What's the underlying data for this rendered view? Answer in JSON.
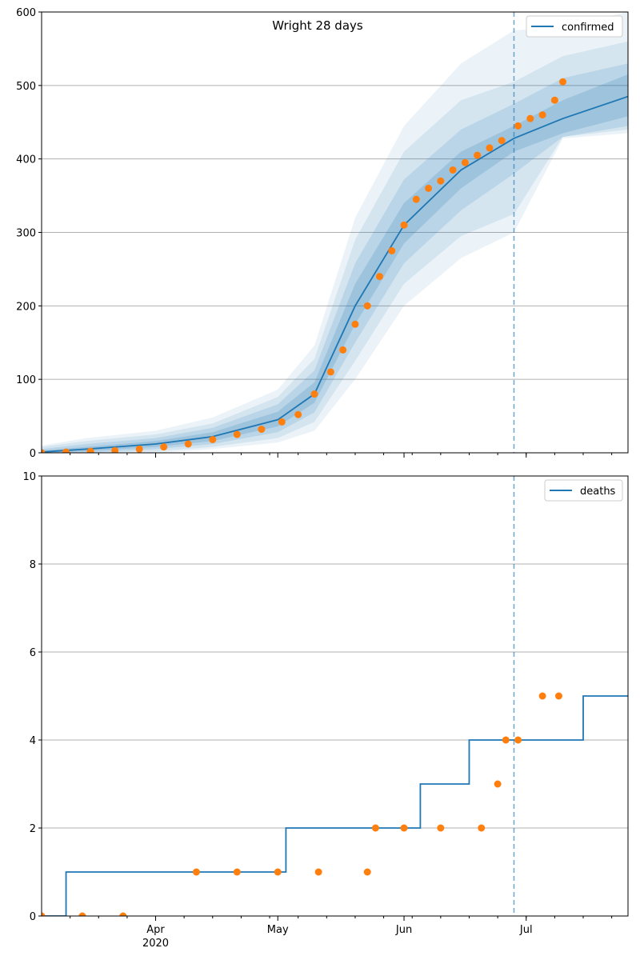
{
  "chart_data": [
    {
      "type": "line",
      "title": "Wright 28 days",
      "xlabel": "",
      "ylabel": "",
      "xlim": [
        "2020-03-04",
        "2020-07-26"
      ],
      "ylim": [
        0,
        600
      ],
      "yticks": [
        0,
        100,
        200,
        300,
        400,
        500,
        600
      ],
      "xticks": [
        {
          "date": "2020-04-01",
          "label": "Apr",
          "sublabel": "2020"
        },
        {
          "date": "2020-05-01",
          "label": "May",
          "sublabel": ""
        },
        {
          "date": "2020-06-01",
          "label": "Jun",
          "sublabel": ""
        },
        {
          "date": "2020-07-01",
          "label": "Jul",
          "sublabel": ""
        }
      ],
      "grid": "horizontal",
      "legend": "top-right",
      "vline_date": "2020-06-28",
      "colors": {
        "line": "#1f77b4",
        "points": "#ff7f0e",
        "band": "#1f77b4"
      },
      "series": [
        {
          "name": "confirmed",
          "kind": "line",
          "x": [
            "2020-03-04",
            "2020-03-15",
            "2020-04-01",
            "2020-04-15",
            "2020-05-01",
            "2020-05-10",
            "2020-05-20",
            "2020-06-01",
            "2020-06-15",
            "2020-06-28",
            "2020-07-10",
            "2020-07-26"
          ],
          "y": [
            1,
            5,
            12,
            22,
            45,
            80,
            200,
            310,
            385,
            428,
            455,
            485
          ]
        },
        {
          "name": "",
          "kind": "band",
          "level": 1,
          "x": [
            "2020-03-04",
            "2020-03-15",
            "2020-04-01",
            "2020-04-15",
            "2020-05-01",
            "2020-05-10",
            "2020-05-20",
            "2020-06-01",
            "2020-06-15",
            "2020-06-28",
            "2020-07-10",
            "2020-07-26"
          ],
          "lo": [
            0,
            2,
            8,
            16,
            36,
            68,
            175,
            285,
            360,
            410,
            435,
            458
          ],
          "hi": [
            3,
            8,
            16,
            28,
            56,
            96,
            230,
            340,
            410,
            445,
            480,
            515
          ]
        },
        {
          "name": "",
          "kind": "band",
          "level": 2,
          "x": [
            "2020-03-04",
            "2020-03-15",
            "2020-04-01",
            "2020-04-15",
            "2020-05-01",
            "2020-05-10",
            "2020-05-20",
            "2020-06-01",
            "2020-06-15",
            "2020-06-28",
            "2020-07-10",
            "2020-07-26"
          ],
          "lo": [
            0,
            0,
            5,
            12,
            28,
            55,
            150,
            258,
            330,
            380,
            430,
            445
          ],
          "hi": [
            5,
            12,
            20,
            34,
            66,
            112,
            258,
            372,
            440,
            475,
            510,
            530
          ]
        },
        {
          "name": "",
          "kind": "band",
          "level": 3,
          "x": [
            "2020-03-04",
            "2020-03-15",
            "2020-04-01",
            "2020-04-15",
            "2020-05-01",
            "2020-05-10",
            "2020-05-20",
            "2020-06-01",
            "2020-06-15",
            "2020-06-28",
            "2020-07-10",
            "2020-07-26"
          ],
          "lo": [
            0,
            0,
            2,
            8,
            20,
            42,
            125,
            230,
            295,
            325,
            430,
            440
          ],
          "hi": [
            8,
            16,
            25,
            40,
            76,
            128,
            290,
            410,
            480,
            505,
            540,
            560
          ]
        },
        {
          "name": "",
          "kind": "band",
          "level": 4,
          "x": [
            "2020-03-04",
            "2020-03-15",
            "2020-04-01",
            "2020-04-15",
            "2020-05-01",
            "2020-05-10",
            "2020-05-20",
            "2020-06-01",
            "2020-06-15",
            "2020-06-28",
            "2020-07-10",
            "2020-07-26"
          ],
          "lo": [
            0,
            0,
            0,
            5,
            14,
            30,
            100,
            200,
            265,
            300,
            428,
            435
          ],
          "hi": [
            10,
            20,
            30,
            48,
            86,
            146,
            320,
            445,
            530,
            575,
            580,
            600
          ]
        },
        {
          "name": "",
          "kind": "points",
          "x": [
            "2020-03-04",
            "2020-03-10",
            "2020-03-16",
            "2020-03-22",
            "2020-03-28",
            "2020-04-03",
            "2020-04-09",
            "2020-04-15",
            "2020-04-21",
            "2020-04-27",
            "2020-05-02",
            "2020-05-06",
            "2020-05-10",
            "2020-05-14",
            "2020-05-17",
            "2020-05-20",
            "2020-05-23",
            "2020-05-26",
            "2020-05-29",
            "2020-06-01",
            "2020-06-04",
            "2020-06-07",
            "2020-06-10",
            "2020-06-13",
            "2020-06-16",
            "2020-06-19",
            "2020-06-22",
            "2020-06-25",
            "2020-06-29",
            "2020-07-02",
            "2020-07-05",
            "2020-07-08",
            "2020-07-10"
          ],
          "y": [
            0,
            1,
            2,
            3,
            5,
            8,
            12,
            18,
            25,
            32,
            42,
            52,
            80,
            110,
            140,
            175,
            200,
            240,
            275,
            310,
            345,
            360,
            370,
            385,
            395,
            405,
            415,
            425,
            445,
            455,
            460,
            480,
            505
          ]
        }
      ]
    },
    {
      "type": "line",
      "title": "",
      "xlabel": "",
      "ylabel": "",
      "xlim": [
        "2020-03-04",
        "2020-07-26"
      ],
      "ylim": [
        0,
        10
      ],
      "yticks": [
        0,
        2,
        4,
        6,
        8,
        10
      ],
      "xticks": [
        {
          "date": "2020-04-01",
          "label": "Apr",
          "sublabel": "2020"
        },
        {
          "date": "2020-05-01",
          "label": "May",
          "sublabel": ""
        },
        {
          "date": "2020-06-01",
          "label": "Jun",
          "sublabel": ""
        },
        {
          "date": "2020-07-01",
          "label": "Jul",
          "sublabel": ""
        }
      ],
      "grid": "horizontal",
      "legend": "top-right",
      "vline_date": "2020-06-28",
      "colors": {
        "line": "#1f77b4",
        "points": "#ff7f0e",
        "band": "#1f77b4"
      },
      "series": [
        {
          "name": "deaths",
          "kind": "line",
          "step": true,
          "x": [
            "2020-03-04",
            "2020-03-10",
            "2020-05-03",
            "2020-06-05",
            "2020-06-17",
            "2020-07-15"
          ],
          "y": [
            0,
            1,
            2,
            3,
            4,
            5
          ]
        },
        {
          "name": "",
          "kind": "points",
          "x": [
            "2020-03-04",
            "2020-03-14",
            "2020-03-24",
            "2020-04-11",
            "2020-04-21",
            "2020-05-01",
            "2020-05-11",
            "2020-05-23",
            "2020-05-25",
            "2020-06-01",
            "2020-06-10",
            "2020-06-20",
            "2020-06-24",
            "2020-06-26",
            "2020-06-29",
            "2020-07-05",
            "2020-07-09"
          ],
          "y": [
            0,
            0,
            0,
            1,
            1,
            1,
            1,
            1,
            2,
            2,
            2,
            2,
            3,
            4,
            4,
            5,
            5
          ]
        }
      ]
    }
  ]
}
